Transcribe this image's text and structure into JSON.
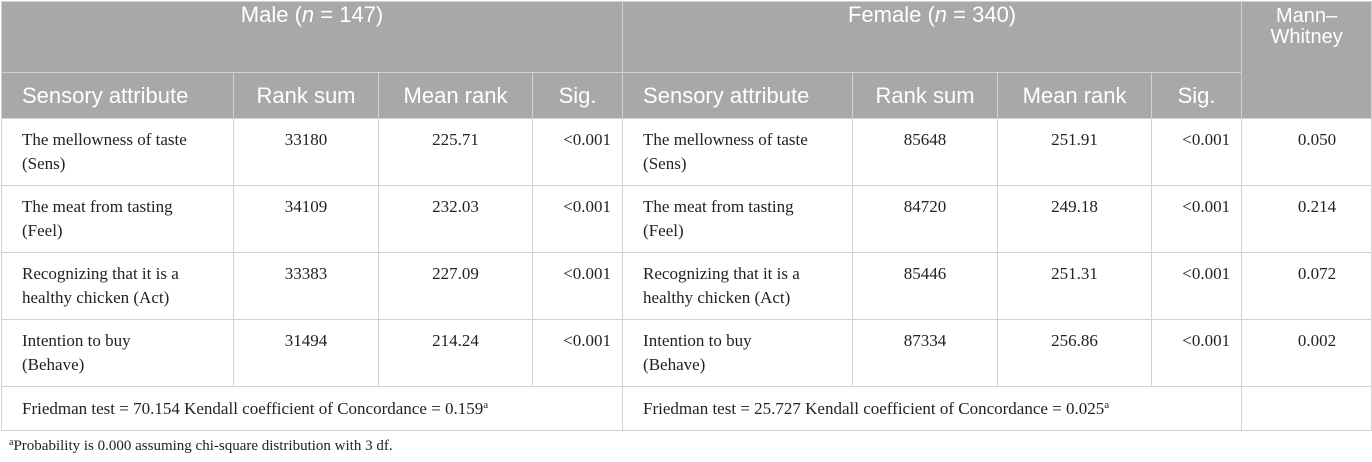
{
  "groups": {
    "male": {
      "prefix": "Male (",
      "n_symbol": "n",
      "suffix": " = 147)"
    },
    "female": {
      "prefix": "Female (",
      "n_symbol": "n",
      "suffix": " = 340)"
    },
    "mann_whitney_line1": "Mann–",
    "mann_whitney_line2": "Whitney"
  },
  "columns": {
    "sensory_attribute": "Sensory attribute",
    "rank_sum": "Rank sum",
    "mean_rank": "Mean rank",
    "sig": "Sig."
  },
  "rows": [
    {
      "attr_line1": "The mellowness of taste",
      "attr_line2": "(Sens)",
      "male_rank_sum": "33180",
      "male_mean_rank": "225.71",
      "male_sig": "<0.001",
      "female_rank_sum": "85648",
      "female_mean_rank": "251.91",
      "female_sig": "<0.001",
      "mann_whitney": "0.050"
    },
    {
      "attr_line1": "The meat from tasting",
      "attr_line2": "(Feel)",
      "male_rank_sum": "34109",
      "male_mean_rank": "232.03",
      "male_sig": "<0.001",
      "female_rank_sum": "84720",
      "female_mean_rank": "249.18",
      "female_sig": "<0.001",
      "mann_whitney": "0.214"
    },
    {
      "attr_line1": "Recognizing that it is a",
      "attr_line2": "healthy chicken (Act)",
      "male_rank_sum": "33383",
      "male_mean_rank": "227.09",
      "male_sig": "<0.001",
      "female_rank_sum": "85446",
      "female_mean_rank": "251.31",
      "female_sig": "<0.001",
      "mann_whitney": "0.072"
    },
    {
      "attr_line1": "Intention to buy",
      "attr_line2": "(Behave)",
      "male_rank_sum": "31494",
      "male_mean_rank": "214.24",
      "male_sig": "<0.001",
      "female_rank_sum": "87334",
      "female_mean_rank": "256.86",
      "female_sig": "<0.001",
      "mann_whitney": "0.002"
    }
  ],
  "friedman": {
    "male": "Friedman test = 70.154 Kendall coefficient of Concordance = 0.159",
    "female": "Friedman test = 25.727 Kendall coefficient of Concordance = 0.025",
    "marker": "a"
  },
  "footnote": {
    "marker": "a",
    "text": "Probability is 0.000 assuming chi-square distribution with 3 df."
  }
}
